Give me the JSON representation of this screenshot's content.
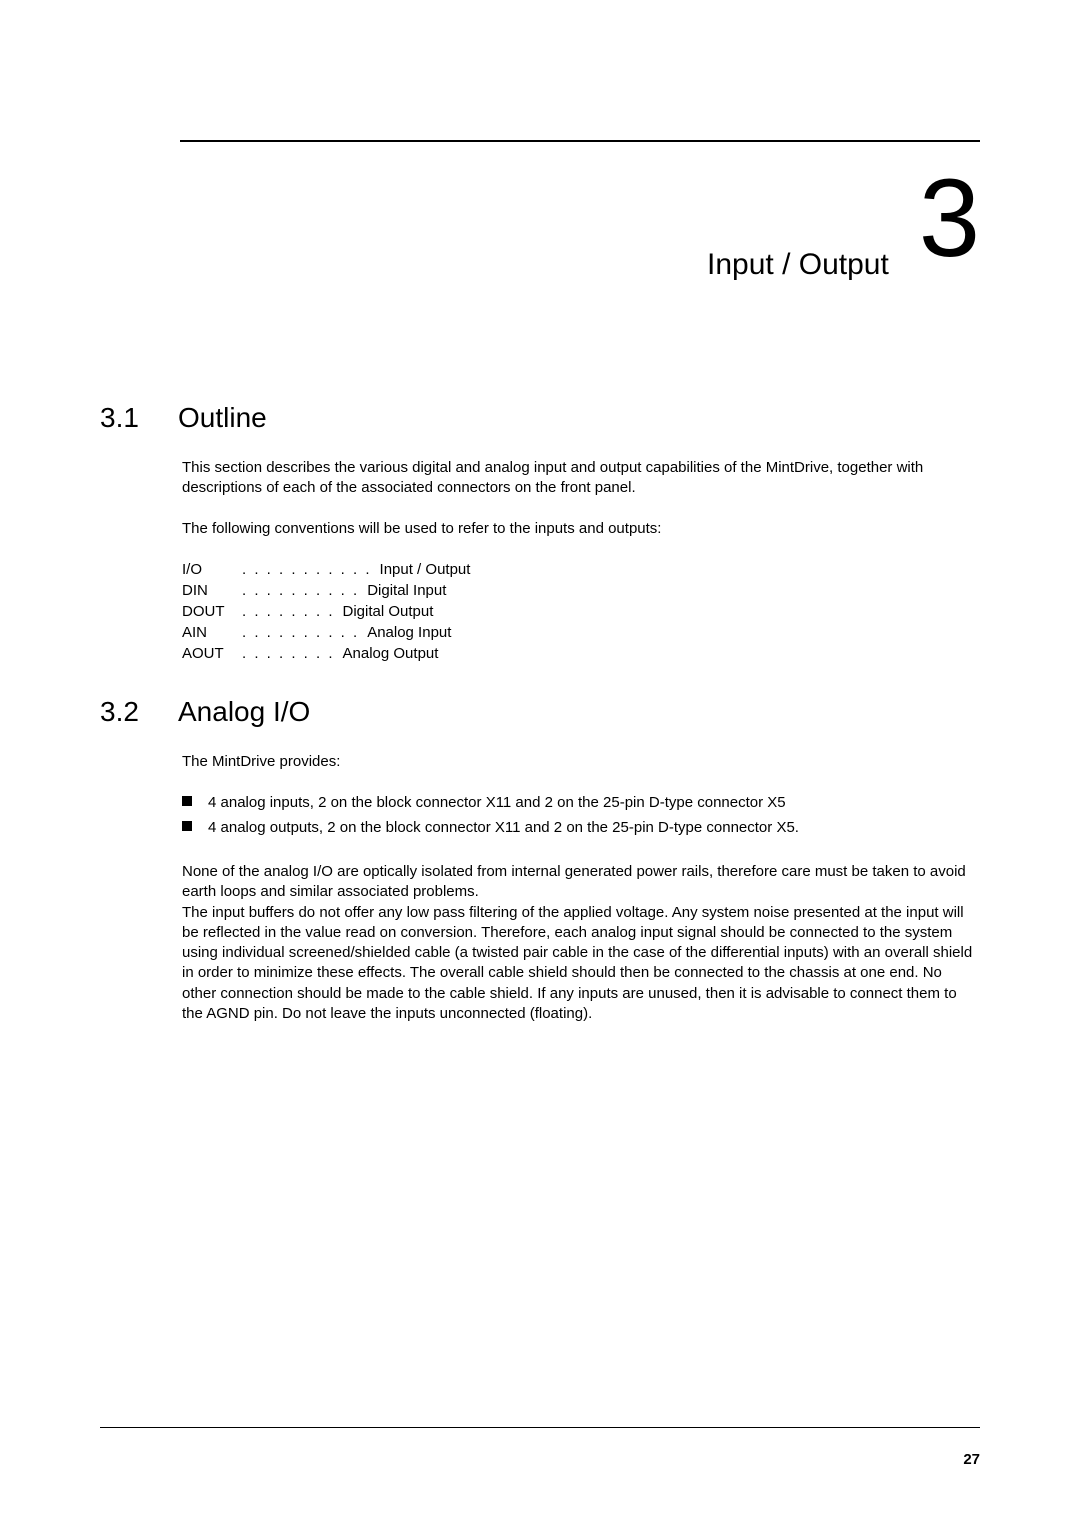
{
  "chapter": {
    "title": "Input / Output",
    "number": "3"
  },
  "sections": {
    "outline": {
      "num": "3.1",
      "title": "Outline",
      "p1": "This section describes the various digital and analog input and output capabilities of the MintDrive, together with descriptions of each of the associated connectors on the front panel.",
      "p2": "The following conventions will be used to refer to the inputs and outputs:",
      "conv": [
        {
          "key": "I/O",
          "dots": ". . . . . . . . . . .",
          "val": "Input / Output"
        },
        {
          "key": "DIN",
          "dots": ". . . . . . . . . .",
          "val": "Digital Input"
        },
        {
          "key": "DOUT",
          "dots": ". . . . . . . .",
          "val": "Digital Output"
        },
        {
          "key": "AIN",
          "dots": ". . . . . . . . . .",
          "val": "Analog Input"
        },
        {
          "key": "AOUT",
          "dots": ". . . . . . . .",
          "val": "Analog Output"
        }
      ]
    },
    "analog": {
      "num": "3.2",
      "title": "Analog I/O",
      "p1": "The MintDrive provides:",
      "bullets": [
        "4 analog inputs, 2 on the block connector X11 and 2 on the 25-pin D-type connector X5",
        "4 analog outputs, 2 on the block connector X11 and 2 on the 25-pin D-type connector X5."
      ],
      "p2": "None of the analog I/O are optically isolated from internal generated power rails, therefore care must be taken to avoid earth loops and similar associated problems.\nThe input buffers do not offer any low pass filtering of the applied voltage.  Any system noise presented at the input will be reflected in the value read on conversion.  Therefore, each analog input signal should be connected to the system using individual screened/shielded cable (a twisted pair cable in the case of the differential inputs) with an overall shield in order to minimize these effects.  The overall cable shield should then be connected to the chassis at one end.  No other connection should be made to the cable shield.  If any inputs are unused, then it is advisable to connect them to the AGND pin. Do not leave the inputs unconnected (floating)."
    }
  },
  "pageNumber": "27",
  "colors": {
    "text": "#000000",
    "bg": "#ffffff"
  },
  "typography": {
    "body_fontsize": 15,
    "section_fontsize": 28,
    "chapter_num_fontsize": 110,
    "chapter_title_fontsize": 30
  }
}
